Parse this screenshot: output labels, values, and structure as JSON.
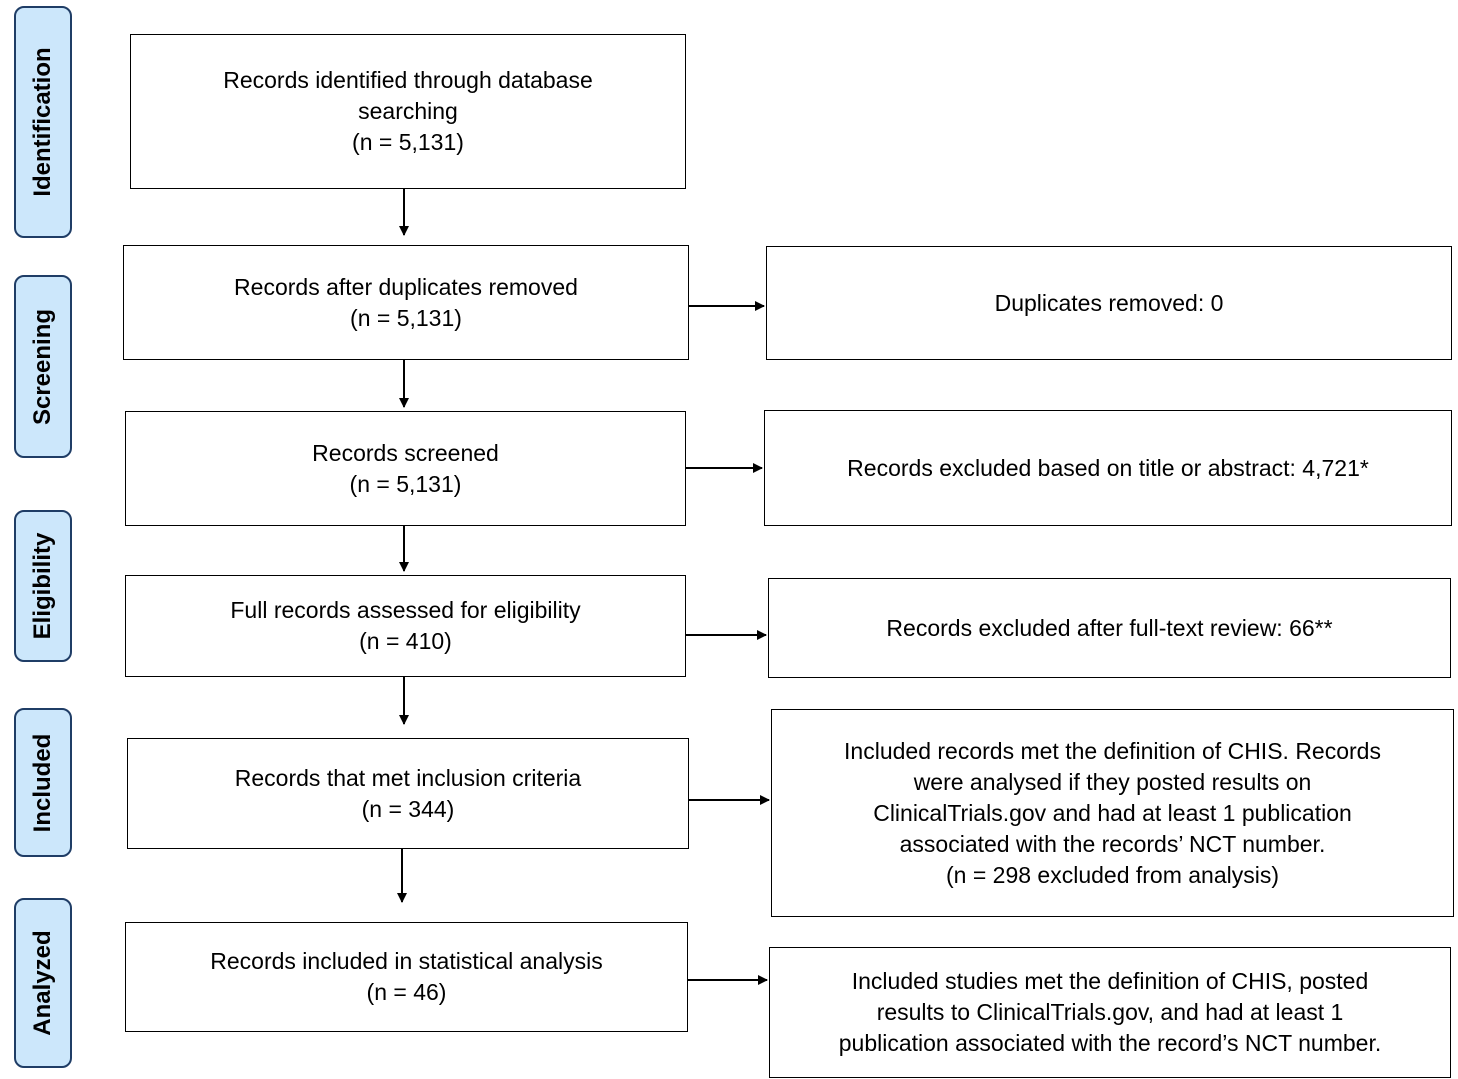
{
  "stages": {
    "identification": "Identification",
    "screening": "Screening",
    "eligibility": "Eligibility",
    "included": "Included",
    "analyzed": "Analyzed"
  },
  "boxes": {
    "identified": "Records identified through database\nsearching\n(n = 5,131)",
    "dedup": "Records after duplicates removed\n(n = 5,131)",
    "screened": "Records screened\n(n = 5,131)",
    "fulltext": "Full records assessed for eligibility\n(n = 410)",
    "included": "Records that met inclusion criteria\n(n = 344)",
    "analysis": "Records included in statistical analysis\n(n = 46)",
    "dup_removed": "Duplicates removed: 0",
    "excluded_title": "Records excluded based on title or abstract: 4,721*",
    "excluded_fulltext": "Records excluded after full-text review: 66**",
    "included_note": "Included records met the definition of CHIS. Records\nwere analysed if they posted results on\nClinicalTrials.gov and had at least 1 publication\nassociated with the records’ NCT number.\n(n = 298 excluded from analysis)",
    "analysis_note": "Included studies met the definition of CHIS, posted\nresults to ClinicalTrials.gov, and had at least 1\npublication associated with the record’s NCT number."
  }
}
